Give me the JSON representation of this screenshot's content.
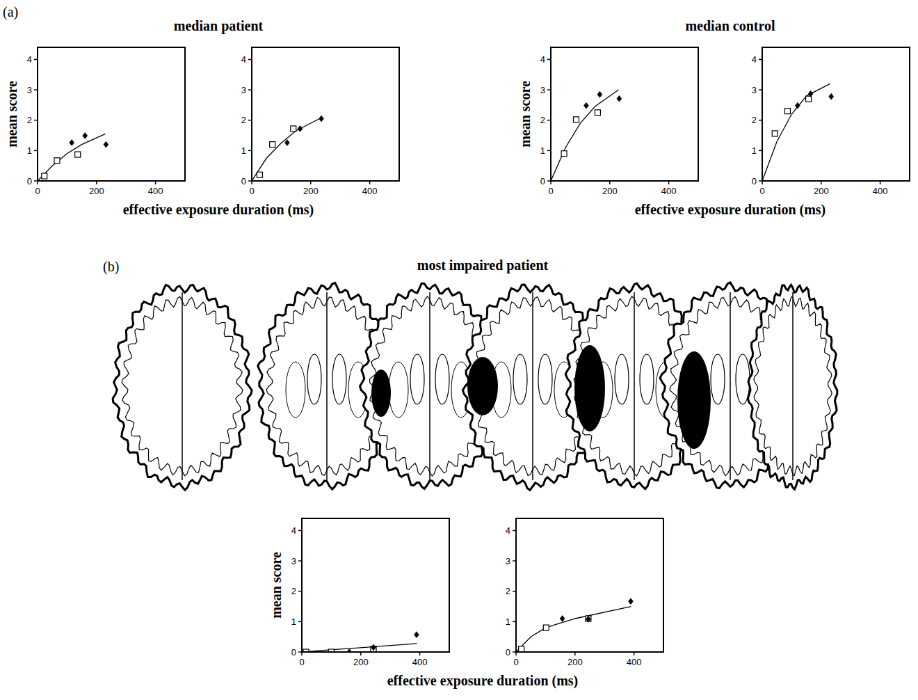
{
  "chart_data": [
    {
      "panel_label": "(a)",
      "title": "median patient",
      "x_label": "effective exposure duration (ms)",
      "y_label": "mean score",
      "charts": [
        {
          "type": "scatter",
          "xlim": [
            0,
            500
          ],
          "ylim": [
            0,
            4.4
          ],
          "xticks": [
            0,
            200,
            400
          ],
          "yticks": [
            0,
            1,
            2,
            3,
            4
          ],
          "series": [
            {
              "type": "line",
              "color": "#000000",
              "line_style": "solid",
              "x": [
                0,
                50,
                100,
                150,
                230
              ],
              "values": [
                0,
                0.5,
                0.9,
                1.2,
                1.55
              ]
            },
            {
              "type": "scatter",
              "color": "#000000",
              "marker": "square-open",
              "x": [
                23,
                66,
                136
              ],
              "values": [
                0.16,
                0.67,
                0.87
              ]
            },
            {
              "type": "scatter",
              "color": "#000000",
              "marker": "diamond",
              "x": [
                116,
                161,
                232
              ],
              "values": [
                1.26,
                1.49,
                1.2
              ]
            }
          ]
        },
        {
          "type": "scatter",
          "xlim": [
            0,
            500
          ],
          "ylim": [
            0,
            4.4
          ],
          "xticks": [
            0,
            200,
            400
          ],
          "yticks": [
            0,
            1,
            2,
            3,
            4
          ],
          "series": [
            {
              "type": "line",
              "color": "#000000",
              "line_style": "solid",
              "x": [
                0,
                50,
                100,
                150,
                230
              ],
              "values": [
                0,
                0.75,
                1.25,
                1.65,
                2.05
              ]
            },
            {
              "type": "scatter",
              "color": "#000000",
              "marker": "square-open",
              "x": [
                27,
                70,
                141
              ],
              "values": [
                0.2,
                1.2,
                1.72
              ]
            },
            {
              "type": "scatter",
              "color": "#000000",
              "marker": "diamond",
              "x": [
                120,
                164,
                236
              ],
              "values": [
                1.26,
                1.72,
                2.05
              ]
            }
          ]
        }
      ]
    },
    {
      "title": "median control",
      "x_label": "effective exposure duration (ms)",
      "y_label": "mean score",
      "charts": [
        {
          "type": "scatter",
          "xlim": [
            0,
            500
          ],
          "ylim": [
            0,
            4.4
          ],
          "xticks": [
            0,
            200,
            400
          ],
          "yticks": [
            0,
            1,
            2,
            3,
            4
          ],
          "series": [
            {
              "type": "line",
              "color": "#000000",
              "line_style": "solid",
              "x": [
                0,
                50,
                100,
                150,
                230
              ],
              "values": [
                0,
                1.1,
                1.9,
                2.45,
                3.0
              ]
            },
            {
              "type": "scatter",
              "color": "#000000",
              "marker": "square-open",
              "x": [
                45,
                86,
                159
              ],
              "values": [
                0.9,
                2.02,
                2.25
              ]
            },
            {
              "type": "scatter",
              "color": "#000000",
              "marker": "diamond",
              "x": [
                120,
                166,
                232
              ],
              "values": [
                2.48,
                2.85,
                2.71
              ]
            }
          ]
        },
        {
          "type": "scatter",
          "xlim": [
            0,
            500
          ],
          "ylim": [
            0,
            4.4
          ],
          "xticks": [
            0,
            200,
            400
          ],
          "yticks": [
            0,
            1,
            2,
            3,
            4
          ],
          "series": [
            {
              "type": "line",
              "color": "#000000",
              "line_style": "solid",
              "x": [
                0,
                50,
                100,
                150,
                230
              ],
              "values": [
                0,
                1.3,
                2.2,
                2.8,
                3.2
              ]
            },
            {
              "type": "scatter",
              "color": "#000000",
              "marker": "square-open",
              "x": [
                43,
                86,
                157
              ],
              "values": [
                1.56,
                2.3,
                2.7
              ]
            },
            {
              "type": "scatter",
              "color": "#000000",
              "marker": "diamond",
              "x": [
                120,
                164,
                234
              ],
              "values": [
                2.48,
                2.87,
                2.78
              ]
            }
          ]
        }
      ]
    },
    {
      "panel_label": "(b)",
      "title": "most impaired patient",
      "x_label": "effective exposure duration (ms)",
      "y_label": "mean score",
      "charts": [
        {
          "type": "scatter",
          "xlim": [
            0,
            500
          ],
          "ylim": [
            0,
            4.4
          ],
          "xticks": [
            0,
            200,
            400
          ],
          "yticks": [
            0,
            1,
            2,
            3,
            4
          ],
          "series": [
            {
              "type": "line",
              "color": "#000000",
              "line_style": "solid",
              "x": [
                0,
                390
              ],
              "values": [
                0,
                0.28
              ]
            },
            {
              "type": "scatter",
              "color": "#000000",
              "marker": "square-open",
              "x": [
                14,
                100,
                243
              ],
              "values": [
                0,
                0,
                0.1
              ]
            },
            {
              "type": "scatter",
              "color": "#000000",
              "marker": "diamond",
              "x": [
                161,
                243,
                389
              ],
              "values": [
                0,
                0.15,
                0.57
              ]
            }
          ]
        },
        {
          "type": "scatter",
          "xlim": [
            0,
            500
          ],
          "ylim": [
            0,
            4.4
          ],
          "xticks": [
            0,
            200,
            400
          ],
          "yticks": [
            0,
            1,
            2,
            3,
            4
          ],
          "series": [
            {
              "type": "line",
              "color": "#000000",
              "line_style": "solid",
              "x": [
                0,
                50,
                100,
                200,
                390
              ],
              "values": [
                0,
                0.5,
                0.8,
                1.1,
                1.5
              ]
            },
            {
              "type": "scatter",
              "color": "#000000",
              "marker": "square-open",
              "x": [
                18,
                102,
                245
              ],
              "values": [
                0.1,
                0.8,
                1.1
              ]
            },
            {
              "type": "scatter",
              "color": "#000000",
              "marker": "diamond",
              "x": [
                157,
                245,
                389
              ],
              "values": [
                1.1,
                1.08,
                1.67
              ]
            }
          ]
        }
      ]
    }
  ]
}
